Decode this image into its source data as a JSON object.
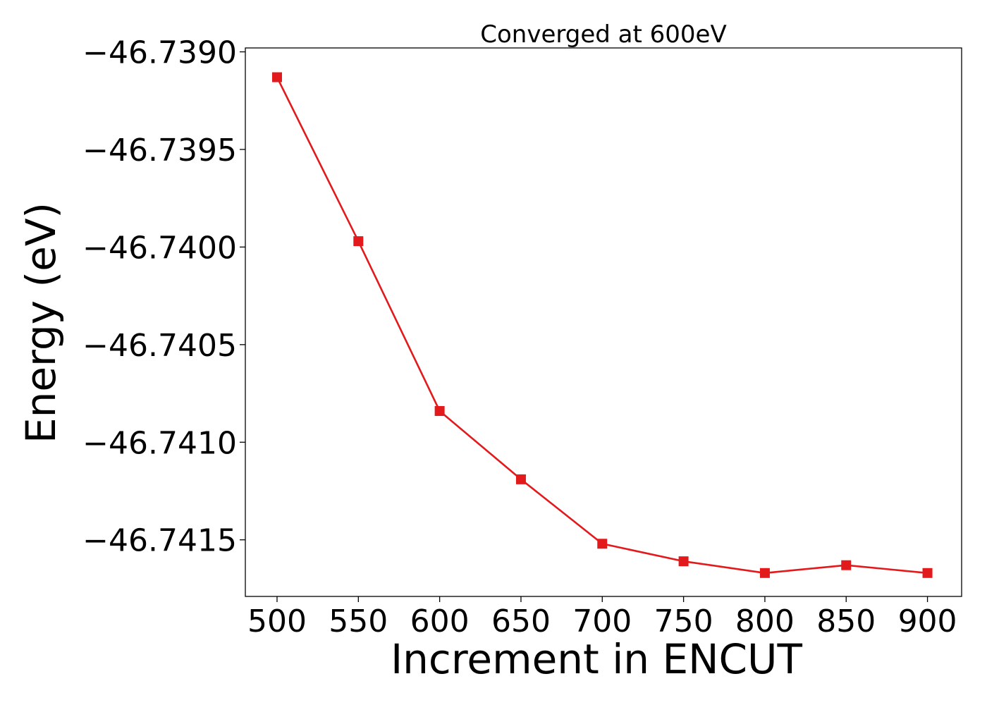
{
  "chart_data": {
    "type": "line",
    "title": "Converged at 600eV",
    "xlabel": "Increment in ENCUT",
    "ylabel": "Energy (eV)",
    "x": [
      500,
      550,
      600,
      650,
      700,
      750,
      800,
      850,
      900
    ],
    "x_ticks": [
      500,
      550,
      600,
      650,
      700,
      750,
      800,
      850,
      900
    ],
    "x_tick_labels": [
      "500",
      "550",
      "600",
      "650",
      "700",
      "750",
      "800",
      "850",
      "900"
    ],
    "y_ticks": [
      -46.739,
      -46.7395,
      -46.74,
      -46.7405,
      -46.741,
      -46.7415
    ],
    "y_tick_labels": [
      "−46.7390",
      "−46.7395",
      "−46.7400",
      "−46.7405",
      "−46.7410",
      "−46.7415"
    ],
    "xlim": [
      480.5,
      921
    ],
    "ylim": [
      -46.74179,
      -46.73898
    ],
    "grid": false,
    "series": [
      {
        "values": [
          -46.73913,
          -46.73997,
          -46.74084,
          -46.74119,
          -46.74152,
          -46.74161,
          -46.74167,
          -46.74163,
          -46.74167
        ],
        "color": "#e31a1c",
        "marker": "square"
      }
    ]
  }
}
